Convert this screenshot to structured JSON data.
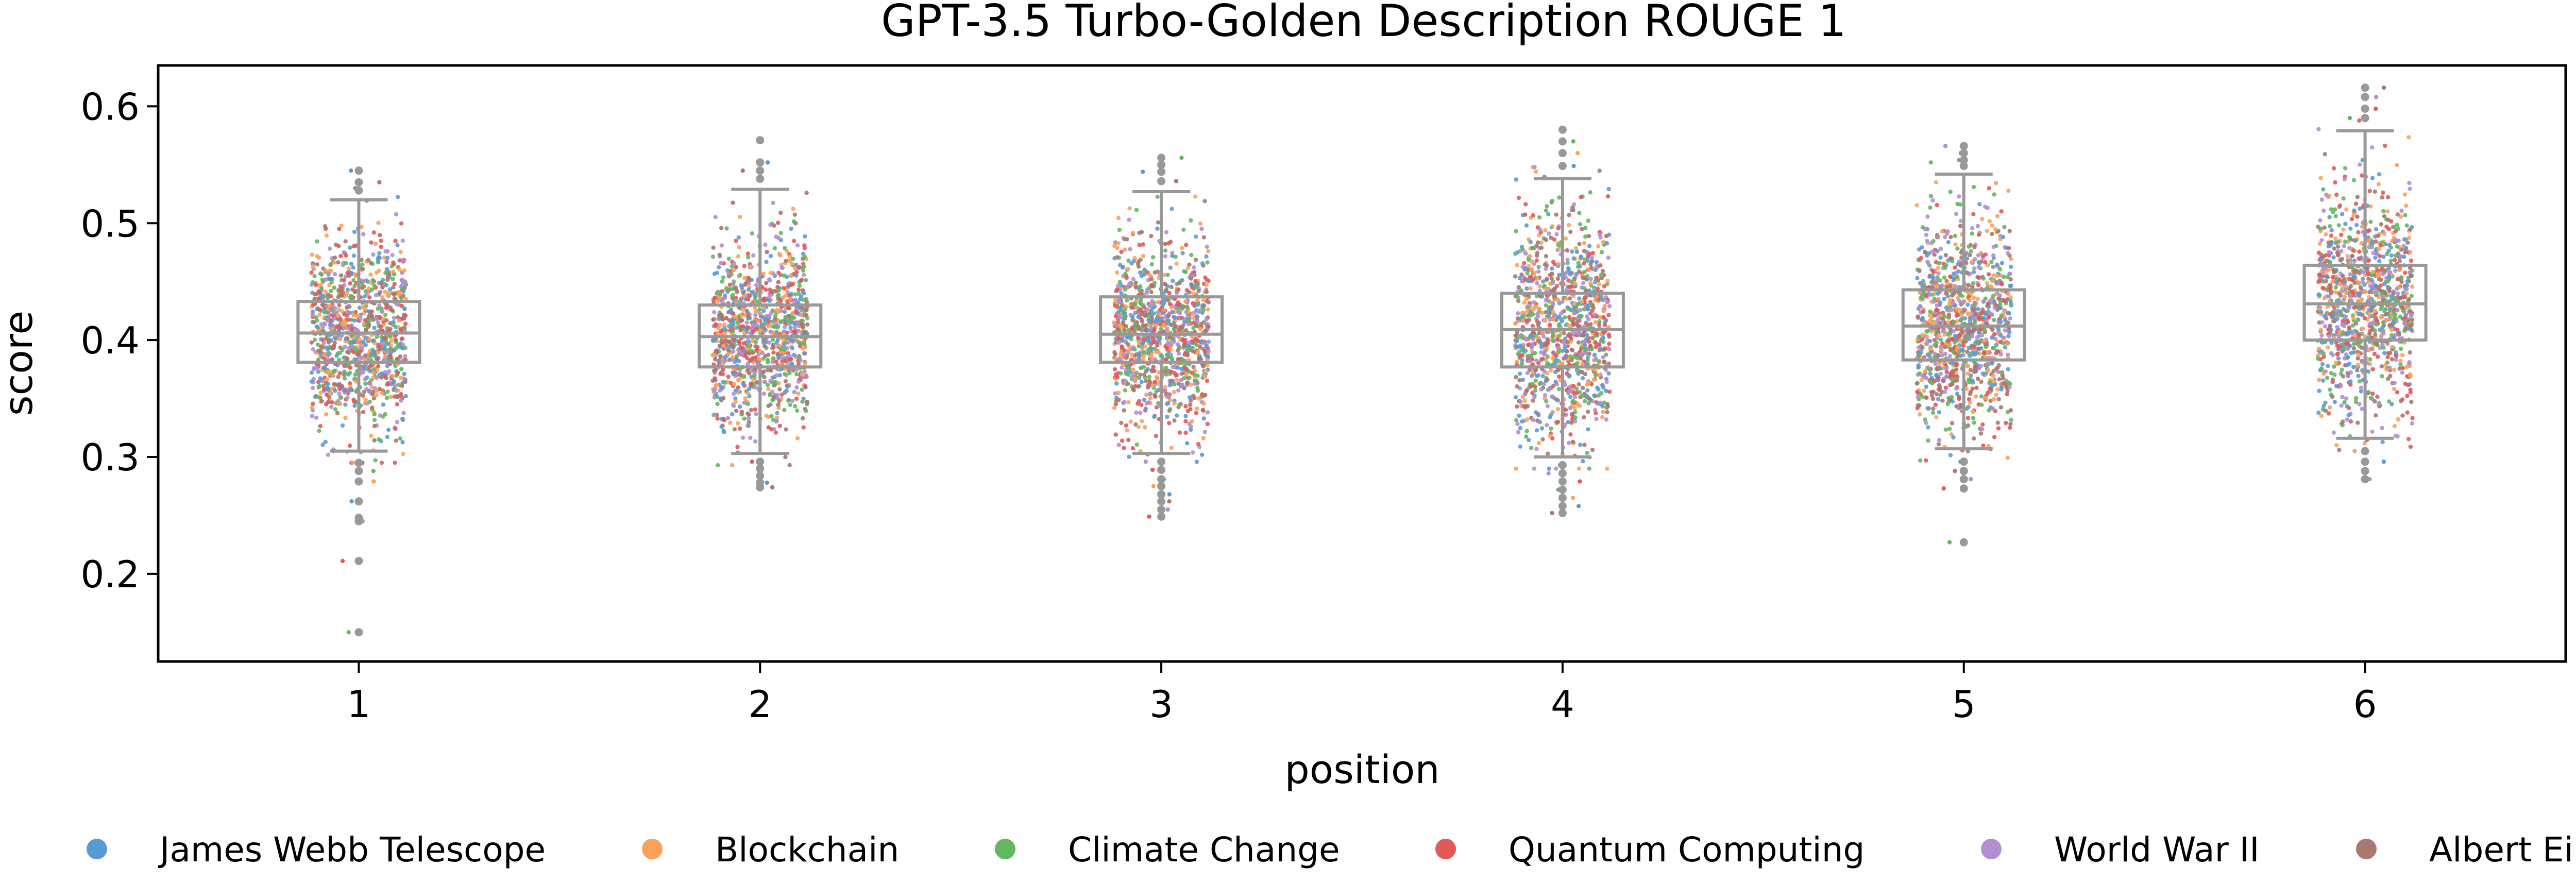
{
  "chart_data": {
    "type": "box-strip",
    "title": "GPT-3.5 Turbo-Golden Description ROUGE 1",
    "xlabel": "position",
    "ylabel": "score",
    "ylim": [
      0.125,
      0.635
    ],
    "yticks": [
      "0.2",
      "0.3",
      "0.4",
      "0.5",
      "0.6"
    ],
    "grid": false,
    "legend_position": "bottom",
    "categories": [
      "1",
      "2",
      "3",
      "4",
      "5",
      "6"
    ],
    "boxes": [
      {
        "position": "1",
        "whisker_low": 0.305,
        "q1": 0.381,
        "median": 0.406,
        "q3": 0.433,
        "whisker_high": 0.52,
        "outliers": [
          0.545,
          0.535,
          0.528,
          0.295,
          0.288,
          0.279,
          0.262,
          0.248,
          0.245,
          0.211,
          0.15
        ]
      },
      {
        "position": "2",
        "whisker_low": 0.303,
        "q1": 0.377,
        "median": 0.403,
        "q3": 0.43,
        "whisker_high": 0.529,
        "outliers": [
          0.571,
          0.552,
          0.545,
          0.538,
          0.296,
          0.29,
          0.284,
          0.278,
          0.274
        ]
      },
      {
        "position": "3",
        "whisker_low": 0.303,
        "q1": 0.381,
        "median": 0.405,
        "q3": 0.437,
        "whisker_high": 0.527,
        "outliers": [
          0.556,
          0.55,
          0.544,
          0.536,
          0.296,
          0.289,
          0.281,
          0.275,
          0.268,
          0.262,
          0.255,
          0.249
        ]
      },
      {
        "position": "4",
        "whisker_low": 0.3,
        "q1": 0.377,
        "median": 0.409,
        "q3": 0.44,
        "whisker_high": 0.538,
        "outliers": [
          0.58,
          0.57,
          0.56,
          0.549,
          0.293,
          0.286,
          0.279,
          0.272,
          0.265,
          0.258,
          0.252
        ]
      },
      {
        "position": "5",
        "whisker_low": 0.307,
        "q1": 0.383,
        "median": 0.412,
        "q3": 0.443,
        "whisker_high": 0.542,
        "outliers": [
          0.566,
          0.56,
          0.554,
          0.549,
          0.296,
          0.288,
          0.281,
          0.273,
          0.227
        ]
      },
      {
        "position": "6",
        "whisker_low": 0.316,
        "q1": 0.4,
        "median": 0.431,
        "q3": 0.464,
        "whisker_high": 0.579,
        "outliers": [
          0.616,
          0.608,
          0.598,
          0.59,
          0.305,
          0.296,
          0.288,
          0.281
        ]
      }
    ],
    "series": [
      {
        "name": "James Webb Telescope",
        "color": "#5b9bd5"
      },
      {
        "name": "Blockchain",
        "color": "#fba25a"
      },
      {
        "name": "Climate Change",
        "color": "#62b862"
      },
      {
        "name": "Quantum Computing",
        "color": "#e05a5a"
      },
      {
        "name": "World War II",
        "color": "#b18fd1"
      },
      {
        "name": "Albert Einstein",
        "color": "#a9786e"
      }
    ],
    "box_color": "#999999"
  }
}
